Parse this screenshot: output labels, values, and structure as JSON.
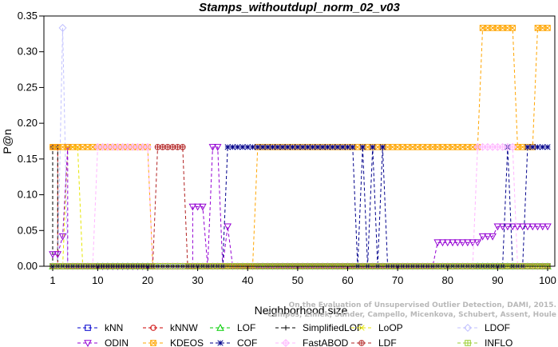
{
  "chart_data": {
    "type": "line",
    "title": "Stamps_withoutdupl_norm_02_v03",
    "xlabel": "Neighborhood size",
    "ylabel": "P@n",
    "xlim": [
      1,
      100
    ],
    "ylim": [
      0,
      0.35
    ],
    "xticks": [
      1,
      10,
      20,
      30,
      40,
      50,
      60,
      70,
      80,
      90,
      100
    ],
    "yticks": [
      "0.00",
      "0.05",
      "0.10",
      "0.15",
      "0.20",
      "0.25",
      "0.30",
      "0.35"
    ],
    "grid": false,
    "legend_position": "bottom",
    "credit": "Campos, Zimek, Sander, Campello, Micenkova, Schubert, Assent, Houle\nOn the Evaluation of Unsupervised Outlier Detection, DAMI, 2015.",
    "series": [
      {
        "name": "kNN",
        "color": "#0000cd",
        "marker": "square",
        "segments": [
          [
            [
              1,
              0.0
            ],
            [
              100,
              0.0
            ]
          ]
        ]
      },
      {
        "name": "kNNW",
        "color": "#cd0000",
        "marker": "circle",
        "segments": [
          [
            [
              1,
              0.1667
            ],
            [
              2,
              0.1667
            ],
            [
              2,
              0.0
            ],
            [
              100,
              0.0
            ]
          ]
        ]
      },
      {
        "name": "LOF",
        "color": "#00cd00",
        "marker": "triangle",
        "segments": [
          [
            [
              1,
              0.0
            ],
            [
              100,
              0.0
            ]
          ]
        ]
      },
      {
        "name": "SimplifiedLOF",
        "color": "#000000",
        "marker": "plus",
        "segments": [
          [
            [
              1,
              0.0
            ],
            [
              1,
              0.1667
            ],
            [
              2,
              0.1667
            ],
            [
              2,
              0.0
            ],
            [
              100,
              0.0
            ]
          ]
        ]
      },
      {
        "name": "LoOP",
        "color": "#e6e600",
        "marker": "x",
        "segments": [
          [
            [
              1,
              0.0
            ],
            [
              3,
              0.0
            ],
            [
              4,
              0.1667
            ],
            [
              6,
              0.1667
            ],
            [
              7,
              0.0
            ],
            [
              100,
              0.0
            ]
          ]
        ]
      },
      {
        "name": "LDOF",
        "color": "#c0c0ff",
        "marker": "diamond",
        "segments": [
          [
            [
              1,
              0.0
            ],
            [
              2,
              0.0
            ],
            [
              3,
              0.3333
            ],
            [
              4,
              0.0
            ],
            [
              100,
              0.0
            ]
          ]
        ]
      },
      {
        "name": "ODIN",
        "color": "#9400d3",
        "marker": "triangle-down",
        "segments": [
          [
            [
              1,
              0.0167
            ],
            [
              2,
              0.0167
            ],
            [
              3,
              0.0417
            ],
            [
              4,
              0.1667
            ],
            [
              4,
              0.0
            ],
            [
              29,
              0.0
            ],
            [
              29,
              0.0833
            ],
            [
              31,
              0.0833
            ],
            [
              32,
              0.0
            ],
            [
              33,
              0.1667
            ],
            [
              34,
              0.1667
            ],
            [
              35,
              0.0
            ],
            [
              36,
              0.0556
            ],
            [
              37,
              0.0
            ],
            [
              77,
              0.0
            ],
            [
              78,
              0.0333
            ],
            [
              86,
              0.0333
            ],
            [
              87,
              0.0417
            ],
            [
              89,
              0.0417
            ],
            [
              90,
              0.0556
            ],
            [
              100,
              0.0556
            ]
          ]
        ]
      },
      {
        "name": "KDEOS",
        "color": "#ffa500",
        "marker": "square-x",
        "segments": [
          [
            [
              1,
              0.1667
            ],
            [
              20,
              0.1667
            ],
            [
              21,
              0.0
            ],
            [
              41,
              0.0
            ],
            [
              42,
              0.1667
            ],
            [
              86,
              0.1667
            ],
            [
              87,
              0.3333
            ],
            [
              93,
              0.3333
            ],
            [
              94,
              0.1667
            ],
            [
              97,
              0.1667
            ],
            [
              98,
              0.3333
            ],
            [
              100,
              0.3333
            ]
          ]
        ]
      },
      {
        "name": "COF",
        "color": "#00008b",
        "marker": "star",
        "segments": [
          [
            [
              1,
              0.0
            ],
            [
              35,
              0.0
            ],
            [
              36,
              0.1667
            ],
            [
              61,
              0.1667
            ],
            [
              62,
              0.0
            ],
            [
              63,
              0.1667
            ],
            [
              64,
              0.0
            ],
            [
              65,
              0.1667
            ],
            [
              66,
              0.0
            ],
            [
              67,
              0.1667
            ],
            [
              68,
              0.0
            ],
            [
              91,
              0.0
            ],
            [
              92,
              0.1667
            ],
            [
              93,
              0.0
            ],
            [
              95,
              0.0
            ],
            [
              96,
              0.1667
            ],
            [
              100,
              0.1667
            ]
          ]
        ]
      },
      {
        "name": "FastABOD",
        "color": "#ffb6ff",
        "marker": "diamond-plus",
        "segments": [
          [
            [
              1,
              0.0
            ],
            [
              9,
              0.0
            ],
            [
              10,
              0.1667
            ],
            [
              20,
              0.1667
            ],
            [
              21,
              0.0
            ],
            [
              85,
              0.0
            ],
            [
              86,
              0.1667
            ],
            [
              93,
              0.1667
            ],
            [
              94,
              0.0
            ],
            [
              100,
              0.0
            ]
          ]
        ]
      },
      {
        "name": "LDF",
        "color": "#b22222",
        "marker": "circle-plus",
        "segments": [
          [
            [
              1,
              0.0
            ],
            [
              21,
              0.0
            ],
            [
              22,
              0.1667
            ],
            [
              27,
              0.1667
            ],
            [
              28,
              0.0
            ],
            [
              100,
              0.0
            ]
          ]
        ]
      },
      {
        "name": "INFLO",
        "color": "#9acd32",
        "marker": "square-cross",
        "segments": [
          [
            [
              1,
              0.0
            ],
            [
              100,
              0.0
            ]
          ]
        ]
      }
    ]
  }
}
